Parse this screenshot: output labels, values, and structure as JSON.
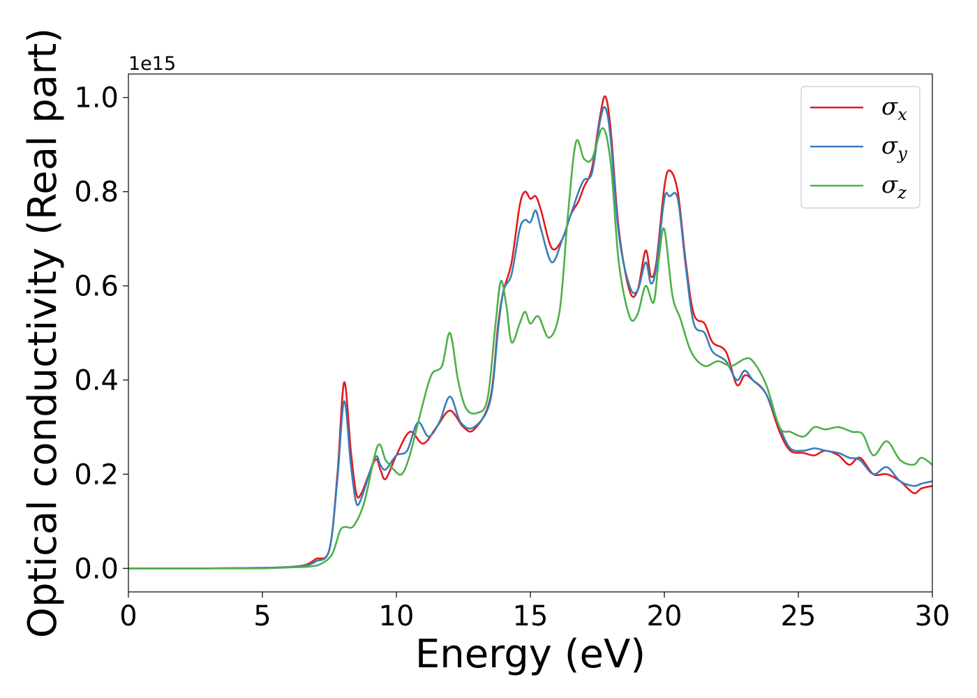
{
  "chart_data": {
    "type": "line",
    "title": "",
    "xlabel": "Energy (eV)",
    "ylabel": "Optical conductivity (Real part)",
    "y_offset_text": "1e15",
    "xlim": [
      0,
      30
    ],
    "ylim": [
      -0.05,
      1.05
    ],
    "x_ticks": [
      0,
      5,
      10,
      15,
      20,
      25,
      30
    ],
    "x_tick_labels": [
      "0",
      "5",
      "10",
      "15",
      "20",
      "25",
      "30"
    ],
    "y_ticks": [
      0.0,
      0.2,
      0.4,
      0.6,
      0.8,
      1.0
    ],
    "y_tick_labels": [
      "0.0",
      "0.2",
      "0.4",
      "0.6",
      "0.8",
      "1.0"
    ],
    "grid": false,
    "legend_position": "top-right",
    "series": [
      {
        "name": "σx",
        "legend_symbol": "σ",
        "legend_subscript": "x",
        "color": "#e41a1c",
        "points": [
          [
            0,
            0
          ],
          [
            3,
            0.0
          ],
          [
            5,
            0.001
          ],
          [
            6,
            0.003
          ],
          [
            6.6,
            0.007
          ],
          [
            7,
            0.02
          ],
          [
            7.5,
            0.04
          ],
          [
            7.8,
            0.2
          ],
          [
            8.05,
            0.395
          ],
          [
            8.3,
            0.25
          ],
          [
            8.5,
            0.16
          ],
          [
            8.7,
            0.16
          ],
          [
            9.2,
            0.23
          ],
          [
            9.4,
            0.21
          ],
          [
            9.6,
            0.19
          ],
          [
            10,
            0.24
          ],
          [
            10.5,
            0.29
          ],
          [
            11,
            0.265
          ],
          [
            11.5,
            0.3
          ],
          [
            12,
            0.335
          ],
          [
            12.5,
            0.3
          ],
          [
            12.9,
            0.295
          ],
          [
            13.5,
            0.36
          ],
          [
            13.8,
            0.52
          ],
          [
            14,
            0.59
          ],
          [
            14.3,
            0.65
          ],
          [
            14.6,
            0.77
          ],
          [
            14.8,
            0.8
          ],
          [
            15,
            0.785
          ],
          [
            15.2,
            0.79
          ],
          [
            15.4,
            0.76
          ],
          [
            15.8,
            0.68
          ],
          [
            16.2,
            0.7
          ],
          [
            16.5,
            0.75
          ],
          [
            16.8,
            0.78
          ],
          [
            17,
            0.81
          ],
          [
            17.3,
            0.85
          ],
          [
            17.6,
            0.96
          ],
          [
            17.8,
            1.002
          ],
          [
            18,
            0.93
          ],
          [
            18.3,
            0.72
          ],
          [
            18.7,
            0.59
          ],
          [
            19,
            0.59
          ],
          [
            19.3,
            0.675
          ],
          [
            19.5,
            0.62
          ],
          [
            19.7,
            0.65
          ],
          [
            20,
            0.81
          ],
          [
            20.2,
            0.845
          ],
          [
            20.5,
            0.8
          ],
          [
            20.8,
            0.65
          ],
          [
            21.1,
            0.54
          ],
          [
            21.5,
            0.52
          ],
          [
            21.8,
            0.48
          ],
          [
            22.3,
            0.46
          ],
          [
            22.7,
            0.39
          ],
          [
            23,
            0.41
          ],
          [
            23.3,
            0.4
          ],
          [
            23.8,
            0.37
          ],
          [
            24.3,
            0.29
          ],
          [
            24.7,
            0.25
          ],
          [
            25.2,
            0.245
          ],
          [
            25.6,
            0.24
          ],
          [
            26,
            0.25
          ],
          [
            26.5,
            0.24
          ],
          [
            26.9,
            0.22
          ],
          [
            27.3,
            0.235
          ],
          [
            27.8,
            0.2
          ],
          [
            28.3,
            0.2
          ],
          [
            28.8,
            0.185
          ],
          [
            29.3,
            0.16
          ],
          [
            29.6,
            0.17
          ],
          [
            30,
            0.175
          ]
        ]
      },
      {
        "name": "σy",
        "legend_symbol": "σ",
        "legend_subscript": "y",
        "color": "#377eb8",
        "points": [
          [
            0,
            0
          ],
          [
            3,
            0.0
          ],
          [
            5,
            0.001
          ],
          [
            6,
            0.003
          ],
          [
            6.6,
            0.006
          ],
          [
            7,
            0.015
          ],
          [
            7.5,
            0.04
          ],
          [
            7.8,
            0.19
          ],
          [
            8.05,
            0.355
          ],
          [
            8.3,
            0.22
          ],
          [
            8.5,
            0.14
          ],
          [
            8.7,
            0.15
          ],
          [
            9.2,
            0.235
          ],
          [
            9.4,
            0.22
          ],
          [
            9.6,
            0.21
          ],
          [
            10,
            0.24
          ],
          [
            10.4,
            0.25
          ],
          [
            10.8,
            0.31
          ],
          [
            11.2,
            0.28
          ],
          [
            11.6,
            0.31
          ],
          [
            12,
            0.365
          ],
          [
            12.4,
            0.31
          ],
          [
            12.9,
            0.3
          ],
          [
            13.5,
            0.355
          ],
          [
            13.8,
            0.51
          ],
          [
            14,
            0.59
          ],
          [
            14.3,
            0.625
          ],
          [
            14.6,
            0.72
          ],
          [
            14.8,
            0.74
          ],
          [
            15,
            0.735
          ],
          [
            15.2,
            0.76
          ],
          [
            15.4,
            0.72
          ],
          [
            15.8,
            0.65
          ],
          [
            16.2,
            0.7
          ],
          [
            16.5,
            0.75
          ],
          [
            16.8,
            0.8
          ],
          [
            17,
            0.825
          ],
          [
            17.3,
            0.84
          ],
          [
            17.6,
            0.95
          ],
          [
            17.8,
            0.978
          ],
          [
            18,
            0.91
          ],
          [
            18.3,
            0.71
          ],
          [
            18.7,
            0.6
          ],
          [
            19,
            0.59
          ],
          [
            19.3,
            0.65
          ],
          [
            19.5,
            0.605
          ],
          [
            19.7,
            0.64
          ],
          [
            20,
            0.785
          ],
          [
            20.2,
            0.79
          ],
          [
            20.5,
            0.785
          ],
          [
            20.8,
            0.64
          ],
          [
            21.1,
            0.52
          ],
          [
            21.5,
            0.5
          ],
          [
            21.8,
            0.46
          ],
          [
            22.3,
            0.44
          ],
          [
            22.7,
            0.4
          ],
          [
            23,
            0.42
          ],
          [
            23.3,
            0.4
          ],
          [
            23.8,
            0.37
          ],
          [
            24.3,
            0.3
          ],
          [
            24.7,
            0.255
          ],
          [
            25.2,
            0.25
          ],
          [
            25.6,
            0.255
          ],
          [
            26,
            0.25
          ],
          [
            26.5,
            0.245
          ],
          [
            26.9,
            0.235
          ],
          [
            27.3,
            0.23
          ],
          [
            27.8,
            0.2
          ],
          [
            28.3,
            0.215
          ],
          [
            28.8,
            0.185
          ],
          [
            29.3,
            0.175
          ],
          [
            29.6,
            0.18
          ],
          [
            30,
            0.185
          ]
        ]
      },
      {
        "name": "σz",
        "legend_symbol": "σ",
        "legend_subscript": "z",
        "color": "#4daf4a",
        "points": [
          [
            0,
            0
          ],
          [
            3,
            0.0
          ],
          [
            5,
            0.0
          ],
          [
            6,
            0.002
          ],
          [
            6.8,
            0.004
          ],
          [
            7.2,
            0.01
          ],
          [
            7.6,
            0.03
          ],
          [
            7.9,
            0.08
          ],
          [
            8.1,
            0.088
          ],
          [
            8.4,
            0.09
          ],
          [
            8.8,
            0.14
          ],
          [
            9.3,
            0.26
          ],
          [
            9.6,
            0.23
          ],
          [
            9.9,
            0.21
          ],
          [
            10.2,
            0.2
          ],
          [
            10.5,
            0.24
          ],
          [
            10.9,
            0.33
          ],
          [
            11.3,
            0.41
          ],
          [
            11.7,
            0.43
          ],
          [
            12,
            0.5
          ],
          [
            12.3,
            0.4
          ],
          [
            12.6,
            0.34
          ],
          [
            13,
            0.33
          ],
          [
            13.4,
            0.36
          ],
          [
            13.7,
            0.52
          ],
          [
            13.9,
            0.61
          ],
          [
            14.1,
            0.56
          ],
          [
            14.3,
            0.48
          ],
          [
            14.6,
            0.52
          ],
          [
            14.8,
            0.545
          ],
          [
            15,
            0.52
          ],
          [
            15.3,
            0.535
          ],
          [
            15.7,
            0.49
          ],
          [
            16.1,
            0.55
          ],
          [
            16.4,
            0.75
          ],
          [
            16.7,
            0.905
          ],
          [
            17,
            0.87
          ],
          [
            17.3,
            0.87
          ],
          [
            17.7,
            0.935
          ],
          [
            18,
            0.86
          ],
          [
            18.3,
            0.65
          ],
          [
            18.7,
            0.535
          ],
          [
            19,
            0.54
          ],
          [
            19.3,
            0.6
          ],
          [
            19.6,
            0.565
          ],
          [
            19.8,
            0.66
          ],
          [
            20,
            0.72
          ],
          [
            20.3,
            0.58
          ],
          [
            20.6,
            0.53
          ],
          [
            21,
            0.46
          ],
          [
            21.5,
            0.43
          ],
          [
            22,
            0.44
          ],
          [
            22.5,
            0.43
          ],
          [
            23,
            0.445
          ],
          [
            23.3,
            0.44
          ],
          [
            23.8,
            0.39
          ],
          [
            24.3,
            0.3
          ],
          [
            24.7,
            0.29
          ],
          [
            25.2,
            0.28
          ],
          [
            25.6,
            0.3
          ],
          [
            26,
            0.295
          ],
          [
            26.5,
            0.3
          ],
          [
            27,
            0.29
          ],
          [
            27.4,
            0.285
          ],
          [
            27.8,
            0.24
          ],
          [
            28.3,
            0.27
          ],
          [
            28.8,
            0.23
          ],
          [
            29.3,
            0.22
          ],
          [
            29.6,
            0.235
          ],
          [
            30,
            0.22
          ]
        ]
      }
    ]
  }
}
